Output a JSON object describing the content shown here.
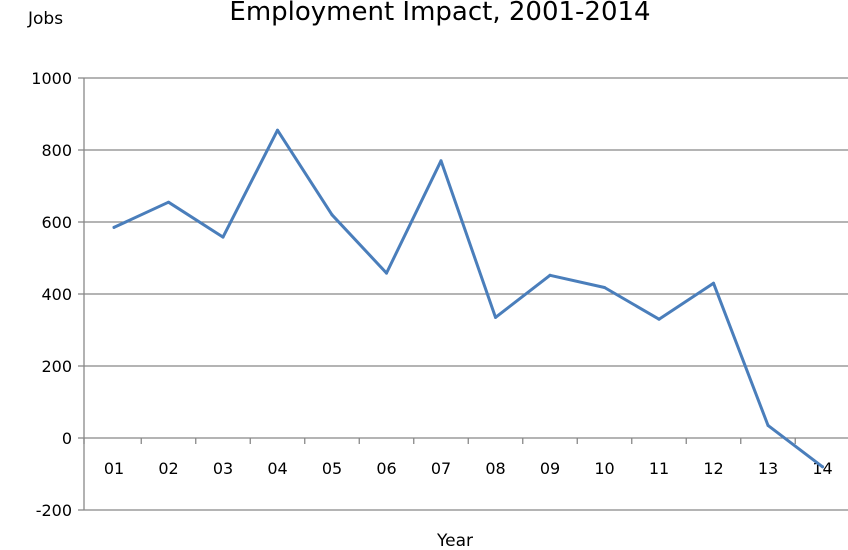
{
  "chart_data": {
    "type": "line",
    "title": "Employment Impact, 2001-2014",
    "xlabel": "Year",
    "ylabel": "Jobs",
    "categories": [
      "01",
      "02",
      "03",
      "04",
      "05",
      "06",
      "07",
      "08",
      "09",
      "10",
      "11",
      "12",
      "13",
      "14"
    ],
    "series": [
      {
        "values": [
          585,
          655,
          558,
          855,
          620,
          458,
          770,
          335,
          452,
          418,
          330,
          430,
          35,
          -80
        ],
        "color": "#4a7ebb"
      }
    ],
    "ylim": [
      -200,
      1000
    ],
    "yticks": [
      -200,
      0,
      200,
      400,
      600,
      800,
      1000
    ],
    "ytick_labels": [
      "-200",
      "0",
      "200",
      "400",
      "600",
      "800",
      "1000"
    ],
    "grid": true,
    "legend": "none",
    "colors": {
      "line": "#4a7ebb",
      "grid": "#888888",
      "axis": "#888888"
    }
  }
}
